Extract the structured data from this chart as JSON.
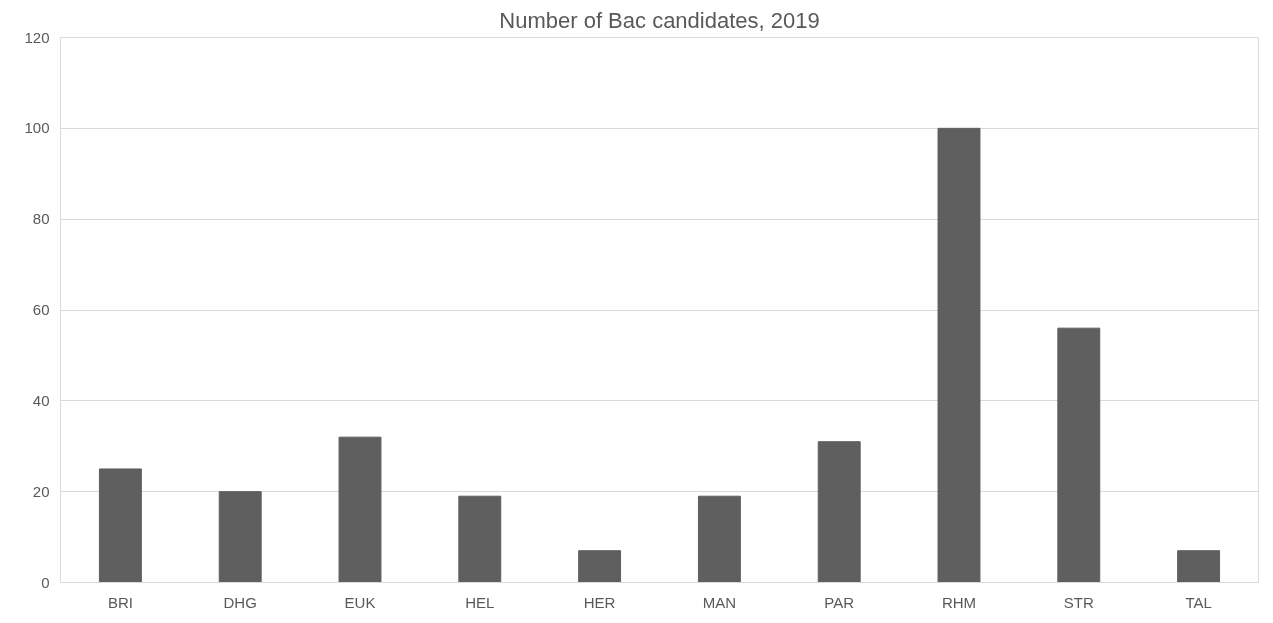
{
  "chart_data": {
    "type": "bar",
    "title": "Number of Bac candidates, 2019",
    "categories": [
      "BRI",
      "DHG",
      "EUK",
      "HEL",
      "HER",
      "MAN",
      "PAR",
      "RHM",
      "STR",
      "TAL"
    ],
    "values": [
      25,
      20,
      32,
      19,
      7,
      19,
      31,
      100,
      56,
      7
    ],
    "color": "#5f5f5f",
    "ylim": [
      0,
      120
    ],
    "yticks": [
      0,
      20,
      40,
      60,
      80,
      100,
      120
    ],
    "grid": "y"
  }
}
